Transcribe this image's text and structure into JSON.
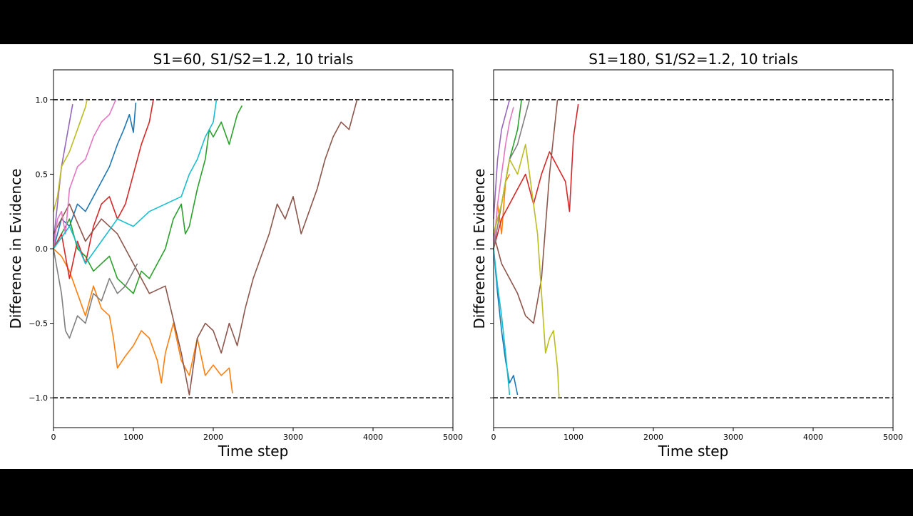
{
  "colors": {
    "letterbox": "#000000",
    "figure_bg": "#ffffff",
    "axes_edge": "#000000",
    "threshold_line": "#000000"
  },
  "chart_data": [
    {
      "type": "line",
      "title": "S1=60, S1/S2=1.2, 10 trials",
      "xlabel": "Time step",
      "ylabel": "Difference in Evidence",
      "xlim": [
        0,
        5000
      ],
      "ylim": [
        -1.2,
        1.2
      ],
      "xticks": [
        0,
        1000,
        2000,
        3000,
        4000,
        5000
      ],
      "xtick_labels": [
        "0",
        "1000",
        "2000",
        "3000",
        "4000",
        "5000"
      ],
      "yticks": [
        -1.0,
        -0.5,
        0.0,
        0.5,
        1.0
      ],
      "ytick_labels": [
        "−1.0",
        "−0.5",
        "0.0",
        "0.5",
        "1.0"
      ],
      "grid": false,
      "thresholds": [
        1.0,
        -1.0
      ],
      "series": [
        {
          "color": "#1f77b4",
          "x": [
            0,
            100,
            200,
            300,
            400,
            500,
            600,
            700,
            800,
            880,
            950,
            1000,
            1030
          ],
          "y": [
            0.0,
            0.2,
            0.15,
            0.3,
            0.25,
            0.35,
            0.45,
            0.55,
            0.7,
            0.8,
            0.9,
            0.78,
            0.98
          ]
        },
        {
          "color": "#ff7f0e",
          "x": [
            0,
            100,
            200,
            300,
            400,
            500,
            600,
            700,
            750,
            800,
            900,
            1000,
            1100,
            1200,
            1300,
            1350,
            1400,
            1500,
            1600,
            1700,
            1800,
            1900,
            2000,
            2100,
            2200,
            2240
          ],
          "y": [
            0.0,
            -0.05,
            -0.15,
            -0.3,
            -0.45,
            -0.25,
            -0.4,
            -0.45,
            -0.6,
            -0.8,
            -0.72,
            -0.65,
            -0.55,
            -0.6,
            -0.75,
            -0.9,
            -0.7,
            -0.5,
            -0.75,
            -0.85,
            -0.6,
            -0.85,
            -0.78,
            -0.85,
            -0.8,
            -0.97
          ]
        },
        {
          "color": "#2ca02c",
          "x": [
            0,
            100,
            200,
            300,
            400,
            500,
            600,
            700,
            800,
            900,
            1000,
            1100,
            1200,
            1300,
            1400,
            1500,
            1600,
            1650,
            1700,
            1800,
            1900,
            1950,
            2000,
            2100,
            2200,
            2300,
            2360
          ],
          "y": [
            0.0,
            0.1,
            0.2,
            0.0,
            -0.05,
            -0.15,
            -0.1,
            -0.05,
            -0.2,
            -0.25,
            -0.3,
            -0.15,
            -0.2,
            -0.1,
            0.0,
            0.2,
            0.3,
            0.1,
            0.15,
            0.4,
            0.6,
            0.8,
            0.75,
            0.85,
            0.7,
            0.9,
            0.96
          ]
        },
        {
          "color": "#d62728",
          "x": [
            0,
            100,
            200,
            300,
            400,
            500,
            600,
            700,
            800,
            900,
            1000,
            1100,
            1200,
            1250
          ],
          "y": [
            0.0,
            0.1,
            -0.2,
            0.05,
            -0.1,
            0.15,
            0.3,
            0.35,
            0.2,
            0.3,
            0.5,
            0.7,
            0.85,
            1.0
          ]
        },
        {
          "color": "#9467bd",
          "x": [
            0,
            50,
            100,
            150,
            200,
            240
          ],
          "y": [
            0.05,
            0.3,
            0.55,
            0.7,
            0.85,
            0.97
          ]
        },
        {
          "color": "#8c564b",
          "x": [
            0,
            200,
            400,
            600,
            800,
            1000,
            1200,
            1400,
            1600,
            1700,
            1800,
            1900,
            2000,
            2100,
            2200,
            2300,
            2400,
            2500,
            2600,
            2700,
            2800,
            2900,
            3000,
            3100,
            3200,
            3300,
            3400,
            3500,
            3600,
            3700,
            3800
          ],
          "y": [
            0.1,
            0.3,
            0.05,
            0.2,
            0.1,
            -0.1,
            -0.3,
            -0.25,
            -0.7,
            -0.98,
            -0.6,
            -0.5,
            -0.55,
            -0.7,
            -0.5,
            -0.65,
            -0.4,
            -0.2,
            -0.05,
            0.1,
            0.3,
            0.2,
            0.35,
            0.1,
            0.25,
            0.4,
            0.6,
            0.75,
            0.85,
            0.8,
            1.0
          ]
        },
        {
          "color": "#e377c2",
          "x": [
            0,
            50,
            100,
            150,
            200,
            300,
            400,
            500,
            600,
            700,
            780
          ],
          "y": [
            0.0,
            0.2,
            0.25,
            0.1,
            0.4,
            0.55,
            0.6,
            0.75,
            0.85,
            0.9,
            1.0
          ]
        },
        {
          "color": "#7f7f7f",
          "x": [
            0,
            100,
            150,
            200,
            300,
            400,
            500,
            600,
            700,
            800,
            900,
            1000,
            1050
          ],
          "y": [
            0.0,
            -0.3,
            -0.55,
            -0.6,
            -0.45,
            -0.5,
            -0.3,
            -0.35,
            -0.2,
            -0.3,
            -0.25,
            -0.15,
            -0.1
          ]
        },
        {
          "color": "#bcbd22",
          "x": [
            0,
            50,
            100,
            200,
            300,
            400,
            420
          ],
          "y": [
            0.25,
            0.35,
            0.55,
            0.65,
            0.8,
            0.95,
            1.0
          ]
        },
        {
          "color": "#17becf",
          "x": [
            0,
            200,
            400,
            600,
            800,
            1000,
            1200,
            1400,
            1600,
            1700,
            1800,
            1900,
            2000,
            2040
          ],
          "y": [
            0.0,
            0.15,
            -0.1,
            0.05,
            0.2,
            0.15,
            0.25,
            0.3,
            0.35,
            0.5,
            0.6,
            0.75,
            0.85,
            1.0
          ]
        }
      ]
    },
    {
      "type": "line",
      "title": "S1=180, S1/S2=1.2, 10 trials",
      "xlabel": "Time step",
      "ylabel": "Difference in Evidence",
      "xlim": [
        0,
        5000
      ],
      "ylim": [
        -1.2,
        1.2
      ],
      "xticks": [
        0,
        1000,
        2000,
        3000,
        4000,
        5000
      ],
      "xtick_labels": [
        "0",
        "1000",
        "2000",
        "3000",
        "4000",
        "5000"
      ],
      "yticks": [
        -1.0,
        -0.5,
        0.0,
        0.5,
        1.0
      ],
      "ytick_labels": [],
      "grid": false,
      "thresholds": [
        1.0,
        -1.0
      ],
      "series": [
        {
          "color": "#1f77b4",
          "x": [
            0,
            50,
            100,
            150,
            200,
            250,
            300
          ],
          "y": [
            0.0,
            -0.3,
            -0.55,
            -0.75,
            -0.9,
            -0.85,
            -0.98
          ]
        },
        {
          "color": "#ff7f0e",
          "x": [
            0,
            50,
            100,
            150,
            200
          ],
          "y": [
            0.0,
            0.3,
            0.1,
            0.45,
            0.5
          ]
        },
        {
          "color": "#2ca02c",
          "x": [
            0,
            100,
            200,
            300,
            350
          ],
          "y": [
            0.1,
            0.3,
            0.6,
            0.8,
            1.0
          ]
        },
        {
          "color": "#d62728",
          "x": [
            0,
            100,
            200,
            300,
            400,
            500,
            600,
            700,
            800,
            900,
            950,
            1000,
            1060
          ],
          "y": [
            0.0,
            0.2,
            0.3,
            0.4,
            0.5,
            0.3,
            0.5,
            0.65,
            0.55,
            0.45,
            0.25,
            0.75,
            0.97
          ]
        },
        {
          "color": "#9467bd",
          "x": [
            0,
            50,
            100,
            150,
            200
          ],
          "y": [
            0.2,
            0.6,
            0.8,
            0.9,
            1.0
          ]
        },
        {
          "color": "#8c564b",
          "x": [
            0,
            100,
            200,
            300,
            400,
            500,
            600,
            700,
            800
          ],
          "y": [
            0.1,
            -0.1,
            -0.2,
            -0.3,
            -0.45,
            -0.5,
            -0.2,
            0.5,
            1.0
          ]
        },
        {
          "color": "#e377c2",
          "x": [
            0,
            50,
            100,
            150,
            200,
            250
          ],
          "y": [
            0.0,
            0.3,
            0.5,
            0.7,
            0.85,
            0.95
          ]
        },
        {
          "color": "#7f7f7f",
          "x": [
            0,
            100,
            200,
            300,
            400,
            450
          ],
          "y": [
            0.0,
            0.3,
            0.6,
            0.7,
            0.9,
            1.0
          ]
        },
        {
          "color": "#bcbd22",
          "x": [
            0,
            100,
            200,
            300,
            400,
            500,
            550,
            600,
            650,
            700,
            750,
            800,
            820
          ],
          "y": [
            0.1,
            0.3,
            0.6,
            0.5,
            0.7,
            0.3,
            0.1,
            -0.3,
            -0.7,
            -0.6,
            -0.55,
            -0.8,
            -1.0
          ]
        },
        {
          "color": "#17becf",
          "x": [
            0,
            50,
            100,
            150,
            200
          ],
          "y": [
            0.0,
            -0.25,
            -0.45,
            -0.7,
            -0.98
          ]
        }
      ]
    }
  ]
}
